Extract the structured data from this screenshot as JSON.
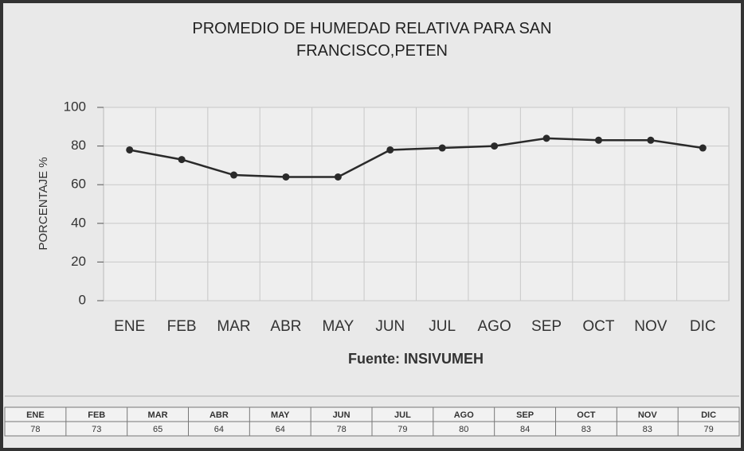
{
  "chart_data": {
    "type": "line",
    "title": "PROMEDIO DE HUMEDAD RELATIVA PARA SAN FRANCISCO,PETEN",
    "ylabel": "PORCENTAJE %",
    "xlabel": "Fuente: INSIVUMEH",
    "categories": [
      "ENE",
      "FEB",
      "MAR",
      "ABR",
      "MAY",
      "JUN",
      "JUL",
      "AGO",
      "SEP",
      "OCT",
      "NOV",
      "DIC"
    ],
    "values": [
      78,
      73,
      65,
      64,
      64,
      78,
      79,
      80,
      84,
      83,
      83,
      79
    ],
    "color": "#2a2a2a",
    "ylim": [
      0,
      100
    ],
    "yticks": [
      0,
      20,
      40,
      60,
      80,
      100
    ],
    "grid": true
  }
}
